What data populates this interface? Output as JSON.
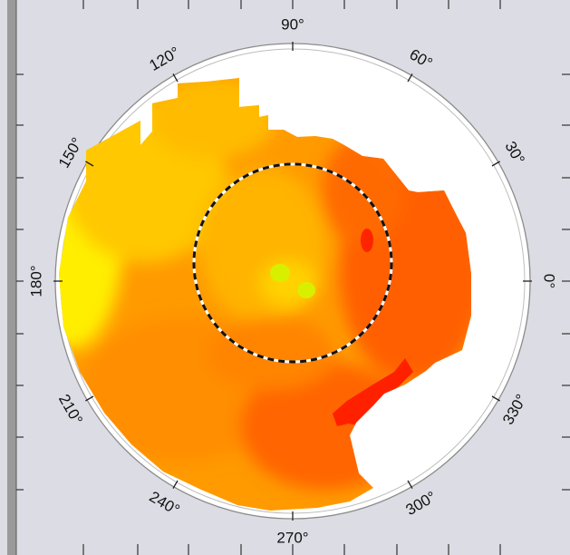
{
  "chart_data": {
    "type": "heatmap",
    "projection": "polar",
    "title": "",
    "angular_ticks": [
      {
        "label": "90°",
        "deg": 90
      },
      {
        "label": "60°",
        "deg": 60
      },
      {
        "label": "30°",
        "deg": 30
      },
      {
        "label": "0°",
        "deg": 0
      },
      {
        "label": "330°",
        "deg": 330
      },
      {
        "label": "300°",
        "deg": 300
      },
      {
        "label": "270°",
        "deg": 270
      },
      {
        "label": "240°",
        "deg": 240
      },
      {
        "label": "210°",
        "deg": 210
      },
      {
        "label": "180°",
        "deg": 180
      },
      {
        "label": "150°",
        "deg": 150
      },
      {
        "label": "120°",
        "deg": 120
      }
    ],
    "reference_circle": "dashed black/white circle",
    "colormap": [
      "#ffff00",
      "#ffd400",
      "#ffaa00",
      "#ff8400",
      "#ff5f00",
      "#ff2400"
    ],
    "background_color": "#dcdce4"
  }
}
